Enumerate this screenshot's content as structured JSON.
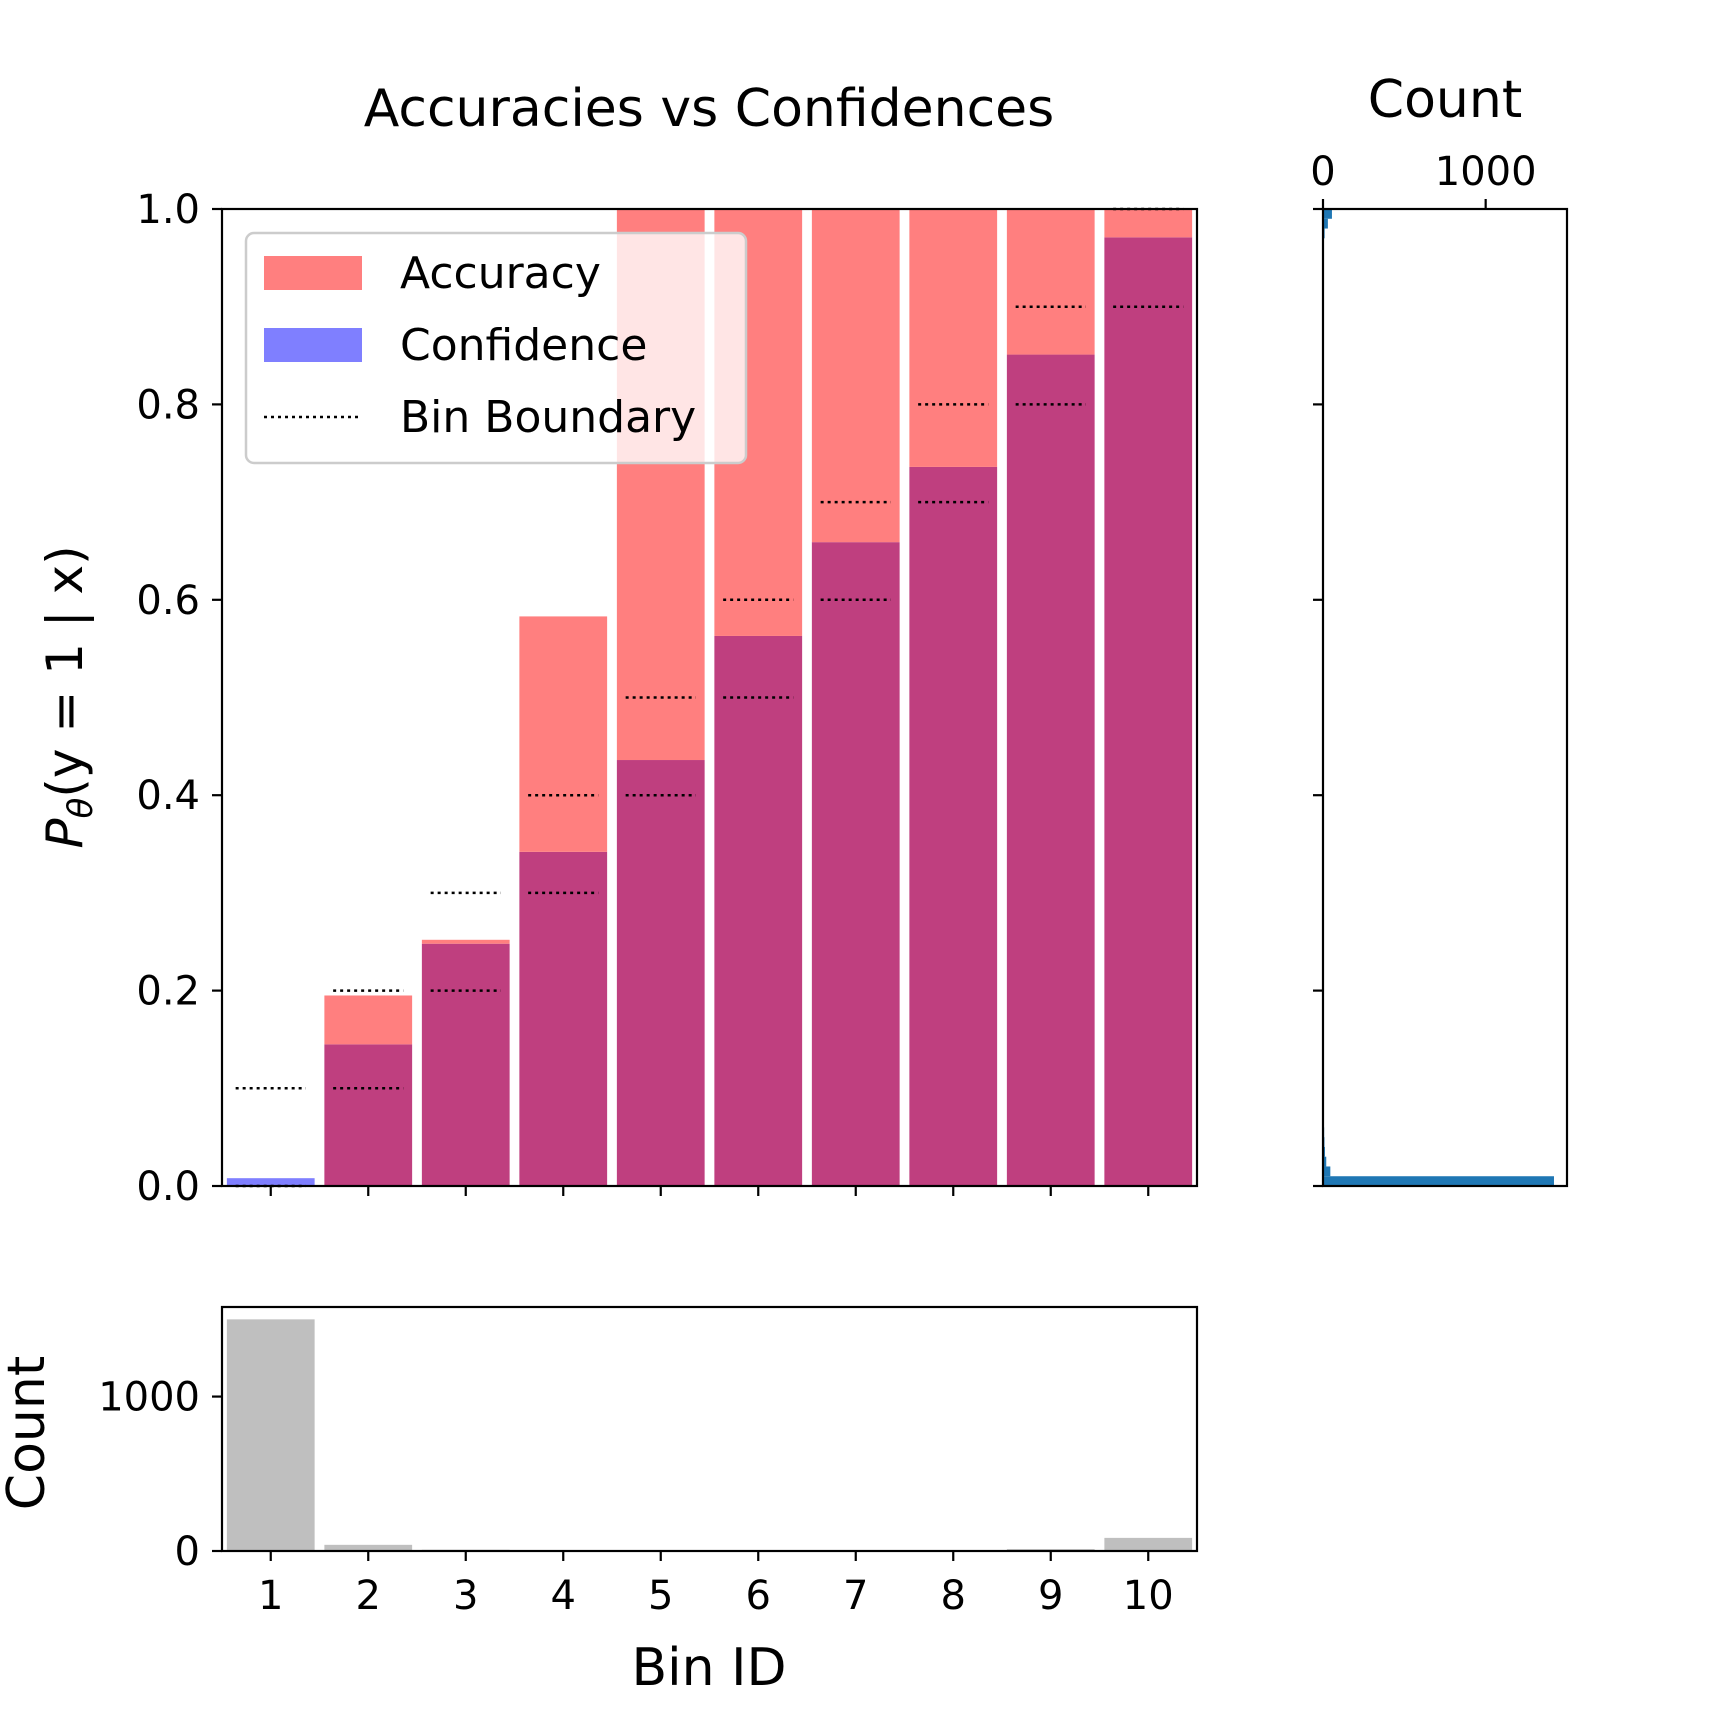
{
  "chart_data": [
    {
      "type": "bar",
      "title": "Accuracies vs Confidences",
      "ylabel": "Pθ(y = 1 | x)",
      "xlabel": "",
      "ylim": [
        0.0,
        1.0
      ],
      "yticks": [
        "0.0",
        "0.2",
        "0.4",
        "0.6",
        "0.8",
        "1.0"
      ],
      "categories": [
        "1",
        "2",
        "3",
        "4",
        "5",
        "6",
        "7",
        "8",
        "9",
        "10"
      ],
      "series": [
        {
          "name": "Accuracy",
          "color": "#ff7f7f",
          "values": [
            0.0,
            0.195,
            0.252,
            0.583,
            1.0,
            1.0,
            1.0,
            1.0,
            1.0,
            1.0
          ]
        },
        {
          "name": "Confidence",
          "color": "#7f7fff",
          "values": [
            0.008,
            0.145,
            0.248,
            0.342,
            0.436,
            0.563,
            0.659,
            0.736,
            0.851,
            0.971
          ]
        },
        {
          "name": "Bin Boundary",
          "style": "dotted",
          "lower": [
            0.0,
            0.1,
            0.2,
            0.3,
            0.4,
            0.5,
            0.6,
            0.7,
            0.8,
            0.9
          ],
          "upper": [
            0.1,
            0.2,
            0.3,
            0.4,
            0.5,
            0.6,
            0.7,
            0.8,
            0.9,
            1.0
          ]
        }
      ],
      "overlap_color": "#bf3f7f",
      "legend": {
        "position": "top-left",
        "entries": [
          "Accuracy",
          "Confidence",
          "Bin Boundary"
        ]
      }
    },
    {
      "type": "bar",
      "title": "",
      "xlabel": "Bin ID",
      "ylabel": "Count",
      "categories": [
        "1",
        "2",
        "3",
        "4",
        "5",
        "6",
        "7",
        "8",
        "9",
        "10"
      ],
      "values": [
        1500,
        40,
        8,
        6,
        4,
        3,
        3,
        5,
        12,
        85
      ],
      "ylim": [
        0,
        1580
      ],
      "yticks": [
        "0",
        "1000"
      ],
      "color": "#bfbfbf"
    },
    {
      "type": "bar",
      "orientation": "horizontal",
      "title": "Count",
      "xlim": [
        0,
        1500
      ],
      "xticks": [
        "0",
        "1000"
      ],
      "ylim": [
        0.0,
        1.0
      ],
      "bin_width": 0.01,
      "bins": [
        {
          "lo": 0.0,
          "hi": 0.01,
          "count": 1420
        },
        {
          "lo": 0.01,
          "hi": 0.02,
          "count": 45
        },
        {
          "lo": 0.02,
          "hi": 0.03,
          "count": 20
        },
        {
          "lo": 0.03,
          "hi": 0.04,
          "count": 12
        },
        {
          "lo": 0.04,
          "hi": 0.05,
          "count": 9
        },
        {
          "lo": 0.05,
          "hi": 0.06,
          "count": 7
        },
        {
          "lo": 0.06,
          "hi": 0.07,
          "count": 6
        },
        {
          "lo": 0.07,
          "hi": 0.08,
          "count": 5
        },
        {
          "lo": 0.08,
          "hi": 0.09,
          "count": 4
        },
        {
          "lo": 0.09,
          "hi": 0.1,
          "count": 4
        },
        {
          "lo": 0.1,
          "hi": 0.11,
          "count": 3
        },
        {
          "lo": 0.12,
          "hi": 0.13,
          "count": 3
        },
        {
          "lo": 0.14,
          "hi": 0.15,
          "count": 3
        },
        {
          "lo": 0.16,
          "hi": 0.17,
          "count": 2
        },
        {
          "lo": 0.97,
          "hi": 0.98,
          "count": 10
        },
        {
          "lo": 0.98,
          "hi": 0.99,
          "count": 30
        },
        {
          "lo": 0.99,
          "hi": 1.0,
          "count": 55
        }
      ],
      "color": "#1f77b4"
    }
  ]
}
